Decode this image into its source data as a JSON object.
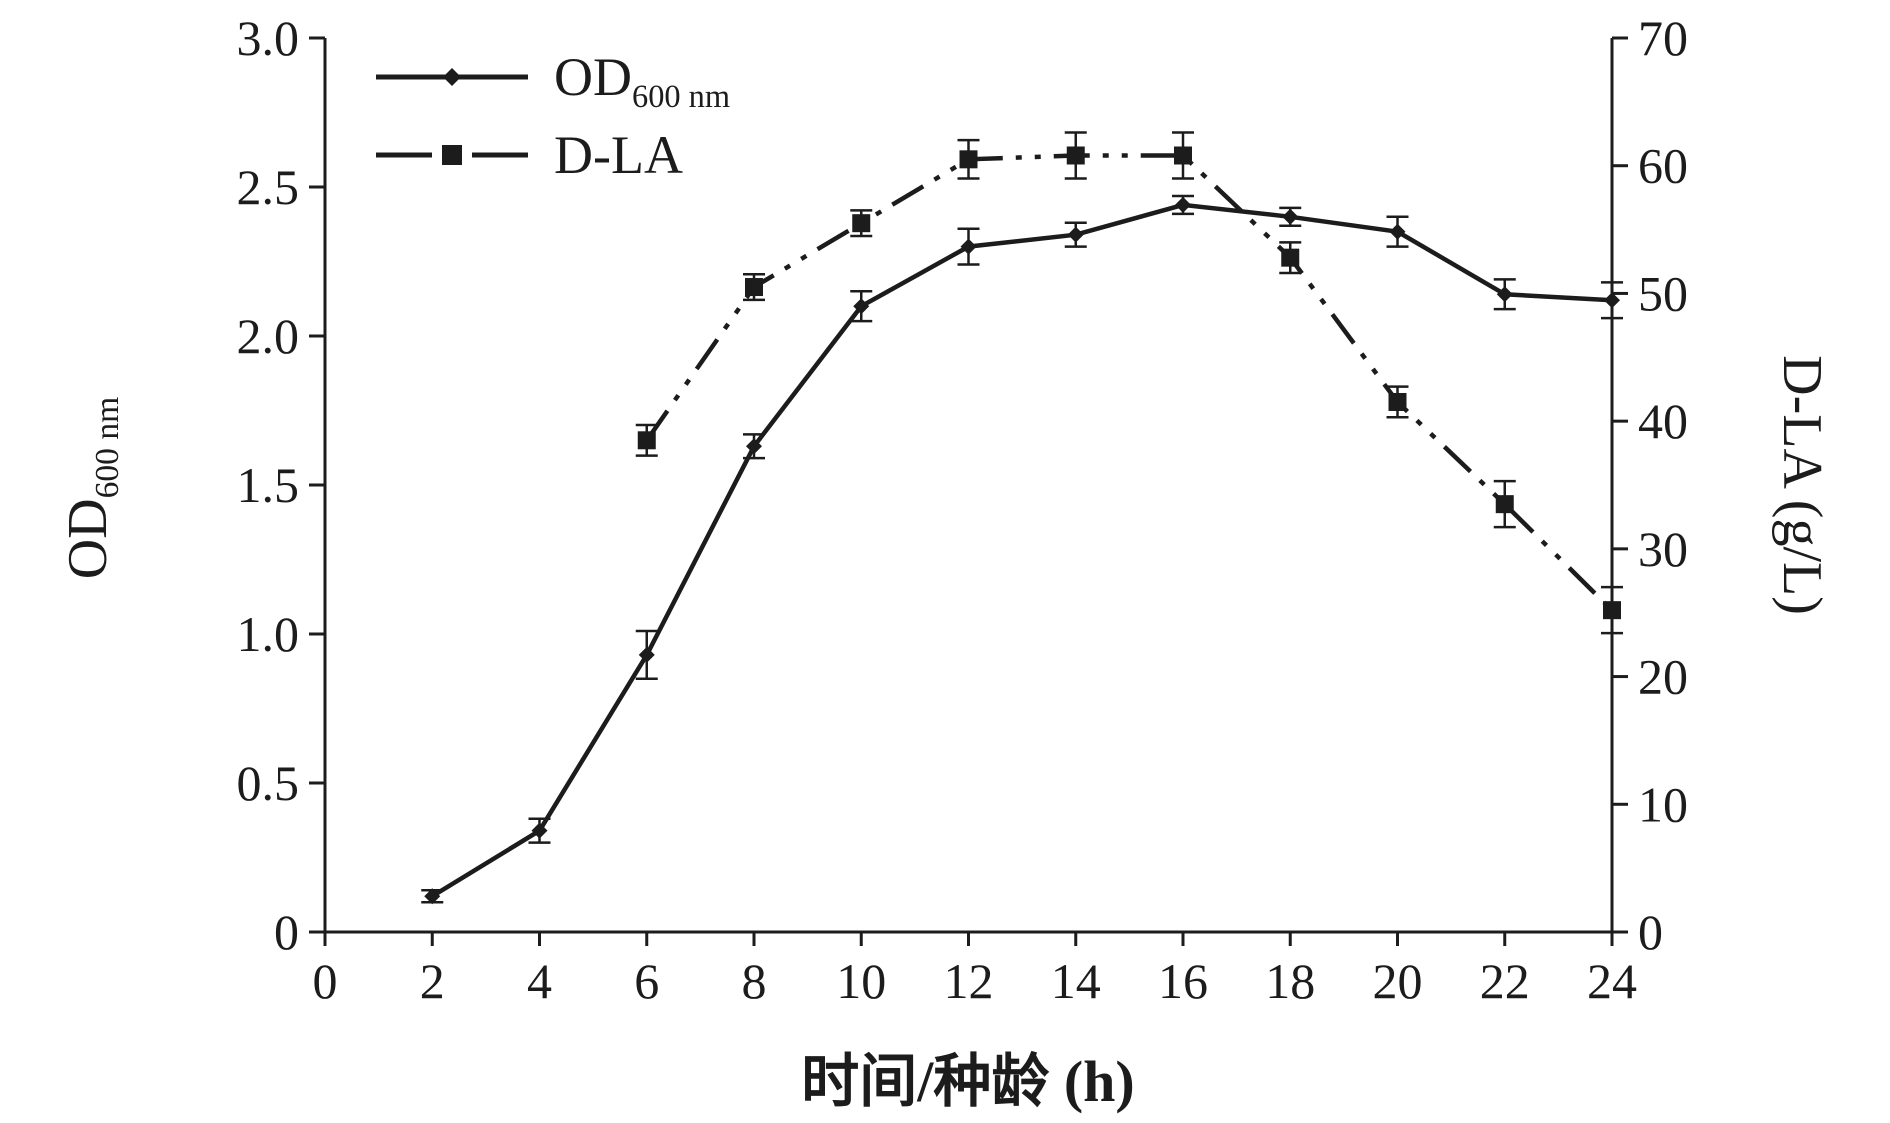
{
  "page": {
    "background": "#ffffff"
  },
  "chart_data": {
    "type": "line",
    "title": "",
    "xlabel": "时间/种龄 (h)",
    "ylabel_left": {
      "main": "OD",
      "sub": "600 nm"
    },
    "ylabel_right": "D-LA (g/L)",
    "xlim": [
      0,
      24
    ],
    "xticks": [
      "0",
      "2",
      "4",
      "6",
      "8",
      "10",
      "12",
      "14",
      "16",
      "18",
      "20",
      "22",
      "24"
    ],
    "ylim_left": [
      0,
      3.0
    ],
    "yticks_left": [
      "0",
      "0.5",
      "1.0",
      "1.5",
      "2.0",
      "2.5",
      "3.0"
    ],
    "ylim_right": [
      0,
      70
    ],
    "yticks_right": [
      "0",
      "10",
      "20",
      "30",
      "40",
      "50",
      "60",
      "70"
    ],
    "grid": false,
    "legend_position": "top-left",
    "color": "#1c1c1c",
    "series": [
      {
        "name": "od600nm",
        "axis": "left",
        "line": "solid",
        "marker": "diamond",
        "x": [
          2,
          4,
          6,
          8,
          10,
          12,
          14,
          16,
          18,
          20,
          22,
          24
        ],
        "values": [
          0.12,
          0.34,
          0.93,
          1.63,
          2.1,
          2.3,
          2.34,
          2.44,
          2.4,
          2.35,
          2.14,
          2.12
        ],
        "errors": [
          0.02,
          0.04,
          0.08,
          0.04,
          0.05,
          0.06,
          0.04,
          0.03,
          0.03,
          0.05,
          0.05,
          0.06
        ]
      },
      {
        "name": "d-la",
        "axis": "right",
        "line": "dashdotdot",
        "marker": "square",
        "x": [
          6,
          8,
          10,
          12,
          14,
          16,
          18,
          20,
          22,
          24
        ],
        "values": [
          38.5,
          50.5,
          55.5,
          60.5,
          60.8,
          60.8,
          52.8,
          41.5,
          33.5,
          25.2
        ],
        "errors": [
          1.2,
          1.0,
          1.0,
          1.5,
          1.8,
          1.8,
          1.2,
          1.2,
          1.8,
          1.8
        ]
      }
    ],
    "legend": [
      {
        "main": "OD",
        "sub": "600 nm"
      },
      {
        "main": "D-LA",
        "sub": ""
      }
    ]
  }
}
